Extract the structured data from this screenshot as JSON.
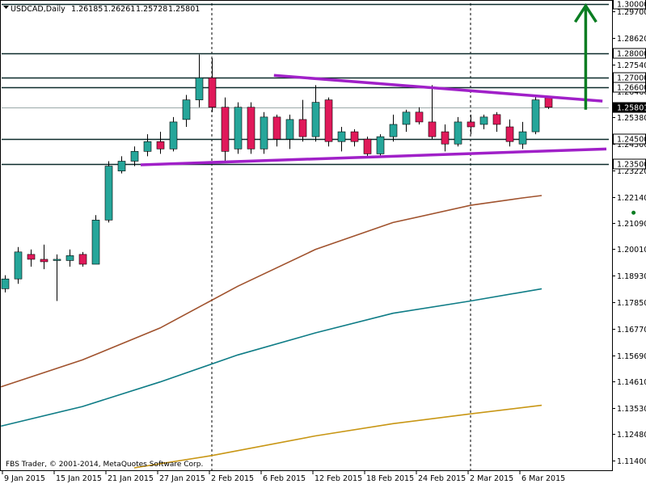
{
  "header": {
    "symbol": "USDCAD,Daily",
    "open": "1.26185",
    "high": "1.26261",
    "low": "1.25728",
    "close": "1.25801"
  },
  "footer": {
    "copyright": "FBS Trader, © 2001-2014, MetaQuotes Software Corp."
  },
  "colors": {
    "bull": "#26a69a",
    "bear": "#e0195a",
    "wick": "#000000",
    "trend": "#a020c8",
    "arrow": "#0a7d22",
    "ma_short": "#a0522d",
    "ma_mid": "#0e7c86",
    "ma_long": "#c89614",
    "hline": "#0b2a2a"
  },
  "chart_data": {
    "type": "candlestick",
    "title": "USDCAD,Daily",
    "ylim": [
      1.11,
      1.3004
    ],
    "y_ticks": [
      "1.29700",
      "1.28620",
      "1.27540",
      "1.26460",
      "1.25380",
      "1.24300",
      "1.23220",
      "1.22140",
      "1.21090",
      "1.20010",
      "1.18930",
      "1.17850",
      "1.16770",
      "1.15690",
      "1.14610",
      "1.13530",
      "1.12480",
      "1.11400"
    ],
    "x_ticks": [
      "9 Jan 2015",
      "15 Jan 2015",
      "21 Jan 2015",
      "27 Jan 2015",
      "2 Feb 2015",
      "6 Feb 2015",
      "12 Feb 2015",
      "18 Feb 2015",
      "24 Feb 2015",
      "2 Mar 2015",
      "6 Mar 2015"
    ],
    "x_tick_index": [
      0,
      4,
      8,
      12,
      16,
      20,
      24,
      28,
      32,
      36,
      40
    ],
    "vlines_at_index": [
      16,
      36
    ],
    "price_levels": [
      {
        "label": "1.30000",
        "value": 1.3
      },
      {
        "label": "1.28000",
        "value": 1.28
      },
      {
        "label": "1.27000",
        "value": 1.27
      },
      {
        "label": "1.26600",
        "value": 1.266
      },
      {
        "label": "1.25801",
        "value": 1.25801,
        "current": true
      },
      {
        "label": "1.24500",
        "value": 1.245
      },
      {
        "label": "1.23500",
        "value": 1.235
      }
    ],
    "candles": [
      {
        "o": 1.184,
        "h": 1.1895,
        "l": 1.1825,
        "c": 1.188
      },
      {
        "o": 1.188,
        "h": 1.201,
        "l": 1.186,
        "c": 1.199
      },
      {
        "o": 1.198,
        "h": 1.2,
        "l": 1.193,
        "c": 1.196
      },
      {
        "o": 1.196,
        "h": 1.202,
        "l": 1.192,
        "c": 1.195
      },
      {
        "o": 1.1955,
        "h": 1.198,
        "l": 1.179,
        "c": 1.196
      },
      {
        "o": 1.1955,
        "h": 1.2,
        "l": 1.193,
        "c": 1.1975
      },
      {
        "o": 1.198,
        "h": 1.199,
        "l": 1.193,
        "c": 1.194
      },
      {
        "o": 1.194,
        "h": 1.214,
        "l": 1.194,
        "c": 1.212
      },
      {
        "o": 1.212,
        "h": 1.236,
        "l": 1.211,
        "c": 1.234
      },
      {
        "o": 1.232,
        "h": 1.238,
        "l": 1.231,
        "c": 1.236
      },
      {
        "o": 1.236,
        "h": 1.242,
        "l": 1.234,
        "c": 1.24
      },
      {
        "o": 1.24,
        "h": 1.247,
        "l": 1.238,
        "c": 1.244
      },
      {
        "o": 1.244,
        "h": 1.248,
        "l": 1.239,
        "c": 1.241
      },
      {
        "o": 1.241,
        "h": 1.254,
        "l": 1.24,
        "c": 1.252
      },
      {
        "o": 1.253,
        "h": 1.263,
        "l": 1.25,
        "c": 1.261
      },
      {
        "o": 1.261,
        "h": 1.2795,
        "l": 1.258,
        "c": 1.27
      },
      {
        "o": 1.27,
        "h": 1.278,
        "l": 1.256,
        "c": 1.258
      },
      {
        "o": 1.258,
        "h": 1.262,
        "l": 1.236,
        "c": 1.24
      },
      {
        "o": 1.241,
        "h": 1.26,
        "l": 1.239,
        "c": 1.258
      },
      {
        "o": 1.258,
        "h": 1.26,
        "l": 1.239,
        "c": 1.241
      },
      {
        "o": 1.241,
        "h": 1.256,
        "l": 1.239,
        "c": 1.254
      },
      {
        "o": 1.254,
        "h": 1.255,
        "l": 1.242,
        "c": 1.245
      },
      {
        "o": 1.245,
        "h": 1.255,
        "l": 1.241,
        "c": 1.253
      },
      {
        "o": 1.253,
        "h": 1.261,
        "l": 1.244,
        "c": 1.246
      },
      {
        "o": 1.246,
        "h": 1.267,
        "l": 1.244,
        "c": 1.26
      },
      {
        "o": 1.261,
        "h": 1.262,
        "l": 1.242,
        "c": 1.244
      },
      {
        "o": 1.244,
        "h": 1.25,
        "l": 1.24,
        "c": 1.248
      },
      {
        "o": 1.248,
        "h": 1.249,
        "l": 1.242,
        "c": 1.244
      },
      {
        "o": 1.245,
        "h": 1.246,
        "l": 1.238,
        "c": 1.239
      },
      {
        "o": 1.239,
        "h": 1.247,
        "l": 1.238,
        "c": 1.246
      },
      {
        "o": 1.246,
        "h": 1.255,
        "l": 1.244,
        "c": 1.251
      },
      {
        "o": 1.251,
        "h": 1.257,
        "l": 1.248,
        "c": 1.256
      },
      {
        "o": 1.256,
        "h": 1.258,
        "l": 1.251,
        "c": 1.252
      },
      {
        "o": 1.252,
        "h": 1.267,
        "l": 1.245,
        "c": 1.246
      },
      {
        "o": 1.248,
        "h": 1.251,
        "l": 1.24,
        "c": 1.243
      },
      {
        "o": 1.243,
        "h": 1.254,
        "l": 1.242,
        "c": 1.252
      },
      {
        "o": 1.252,
        "h": 1.255,
        "l": 1.247,
        "c": 1.25
      },
      {
        "o": 1.251,
        "h": 1.255,
        "l": 1.249,
        "c": 1.254
      },
      {
        "o": 1.255,
        "h": 1.256,
        "l": 1.248,
        "c": 1.251
      },
      {
        "o": 1.25,
        "h": 1.253,
        "l": 1.242,
        "c": 1.244
      },
      {
        "o": 1.243,
        "h": 1.252,
        "l": 1.241,
        "c": 1.248
      },
      {
        "o": 1.248,
        "h": 1.263,
        "l": 1.247,
        "c": 1.261
      },
      {
        "o": 1.2618,
        "h": 1.2626,
        "l": 1.2573,
        "c": 1.258
      }
    ],
    "moving_averages": [
      {
        "color_key": "ma_short",
        "points": [
          [
            -0.3,
            1.144
          ],
          [
            6,
            1.155
          ],
          [
            12,
            1.168
          ],
          [
            18,
            1.185
          ],
          [
            24,
            1.2
          ],
          [
            30,
            1.211
          ],
          [
            36,
            1.218
          ],
          [
            40,
            1.221
          ],
          [
            41.5,
            1.222
          ]
        ]
      },
      {
        "color_key": "ma_mid",
        "points": [
          [
            -0.3,
            1.128
          ],
          [
            6,
            1.136
          ],
          [
            12,
            1.146
          ],
          [
            18,
            1.157
          ],
          [
            24,
            1.166
          ],
          [
            30,
            1.174
          ],
          [
            36,
            1.179
          ],
          [
            41.5,
            1.184
          ]
        ]
      },
      {
        "color_key": "ma_long",
        "points": [
          [
            10,
            1.111
          ],
          [
            16,
            1.116
          ],
          [
            24,
            1.124
          ],
          [
            30,
            1.129
          ],
          [
            36,
            1.133
          ],
          [
            41.5,
            1.1365
          ]
        ]
      }
    ],
    "trendlines": [
      {
        "from": [
          10.5,
          1.2345
        ],
        "to": [
          46.5,
          1.241
        ],
        "color_key": "trend"
      },
      {
        "from": [
          20.8,
          1.271
        ],
        "to": [
          46.2,
          1.2605
        ],
        "color_key": "trend"
      }
    ],
    "arrow": {
      "from": [
        44.9,
        1.257
      ],
      "to": [
        44.9,
        1.3
      ],
      "color_key": "arrow"
    },
    "marker": {
      "x_index": 48.6,
      "y": 1.215,
      "color_key": "arrow"
    }
  }
}
